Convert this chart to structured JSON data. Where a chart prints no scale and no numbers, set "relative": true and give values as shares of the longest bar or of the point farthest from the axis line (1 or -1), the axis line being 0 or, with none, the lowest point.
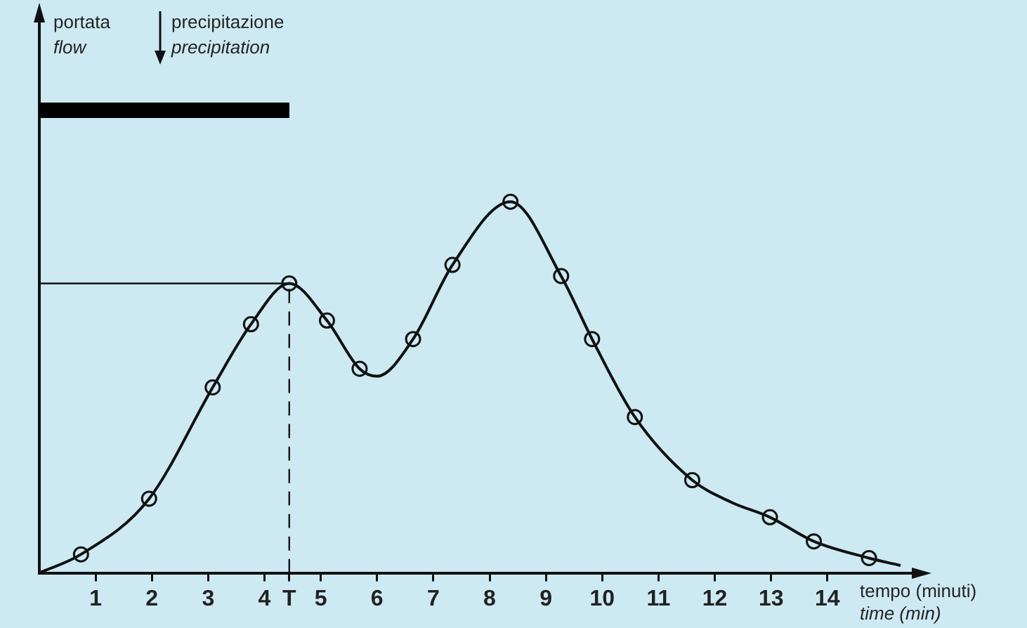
{
  "chart_data": {
    "type": "line",
    "relative": true,
    "xlabel": "tempo (minuti)\ntime (min)",
    "annotations": [
      "portata\nflow",
      "precipitazione\nprecipitation"
    ],
    "xlim": [
      0,
      15.6
    ],
    "xticks": [
      1,
      2,
      3,
      4,
      {
        "value": 4.44,
        "label": "T"
      },
      5,
      6,
      7,
      8,
      9,
      10,
      11,
      12,
      13,
      14
    ],
    "series": [
      {
        "marker": "none",
        "line_style": "solid",
        "color": "#111111",
        "x": [
          0,
          0.74,
          1.95,
          3.08,
          3.76,
          4.44,
          5.11,
          5.69,
          6.0,
          6.64,
          7.34,
          8.37,
          9.27,
          9.82,
          10.58,
          11.6,
          12.3,
          12.98,
          13.76,
          14.74,
          15.3
        ],
        "values": [
          0,
          0.05,
          0.2,
          0.5,
          0.67,
          0.78,
          0.68,
          0.55,
          0.53,
          0.63,
          0.83,
          1,
          0.8,
          0.63,
          0.42,
          0.25,
          0.19,
          0.15,
          0.085,
          0.04,
          0.02
        ]
      },
      {
        "type": "scatter",
        "marker": "circle",
        "color": "#111111",
        "x": [
          0.74,
          1.95,
          3.08,
          3.76,
          4.44,
          5.11,
          5.69,
          6.64,
          7.34,
          8.37,
          9.27,
          9.82,
          10.58,
          11.6,
          12.98,
          13.76,
          14.74
        ],
        "values": [
          0.05,
          0.2,
          0.5,
          0.67,
          0.78,
          0.68,
          0.55,
          0.63,
          0.83,
          1,
          0.8,
          0.63,
          0.42,
          0.25,
          0.15,
          0.085,
          0.04
        ]
      },
      {
        "marker": "none",
        "line_style": "solid",
        "color": "#111111",
        "x": [
          0,
          4.44
        ],
        "values": [
          0.78,
          0.78
        ]
      },
      {
        "marker": "none",
        "line_style": "dashed",
        "color": "#111111",
        "x": [
          4.44,
          4.44
        ],
        "values": [
          0,
          0.78
        ]
      }
    ]
  }
}
